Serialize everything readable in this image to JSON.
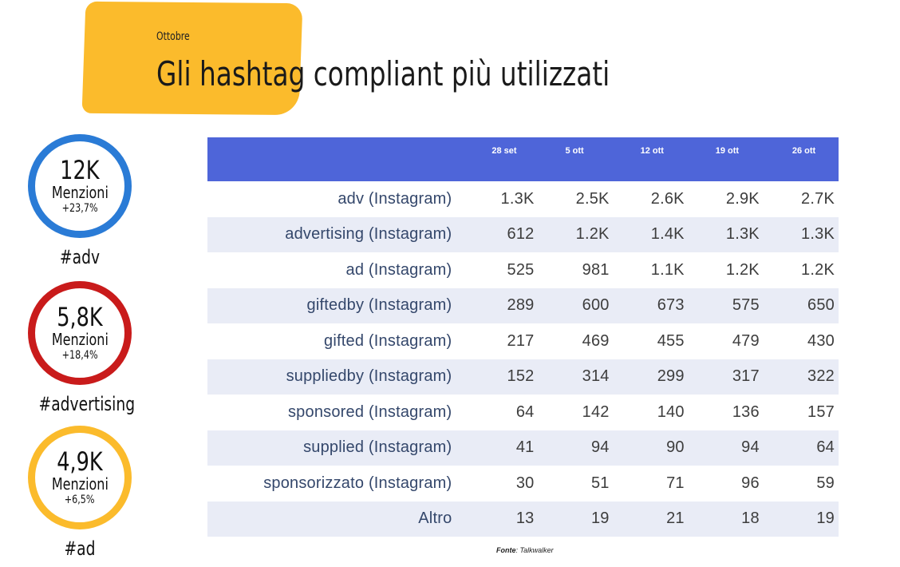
{
  "header": {
    "subtitle": "Ottobre",
    "title": "Gli hashtag compliant più utilizzati"
  },
  "stats": [
    {
      "value": "12K",
      "label": "Menzioni",
      "delta": "+23,7%",
      "tag": "#adv",
      "color": "#2a7bd6"
    },
    {
      "value": "5,8K",
      "label": "Menzioni",
      "delta": "+18,4%",
      "tag": "#advertising",
      "color": "#c91b1b"
    },
    {
      "value": "4,9K",
      "label": "Menzioni",
      "delta": "+6,5%",
      "tag": "#ad",
      "color": "#fbbb2c"
    }
  ],
  "chart_data": {
    "type": "table",
    "columns": [
      "28 set",
      "5 ott",
      "12 ott",
      "19 ott",
      "26 ott"
    ],
    "rows": [
      {
        "label": "adv (Instagram)",
        "values": [
          "1.3K",
          "2.5K",
          "2.6K",
          "2.9K",
          "2.7K"
        ]
      },
      {
        "label": "advertising (Instagram)",
        "values": [
          "612",
          "1.2K",
          "1.4K",
          "1.3K",
          "1.3K"
        ]
      },
      {
        "label": "ad (Instagram)",
        "values": [
          "525",
          "981",
          "1.1K",
          "1.2K",
          "1.2K"
        ]
      },
      {
        "label": "giftedby (Instagram)",
        "values": [
          "289",
          "600",
          "673",
          "575",
          "650"
        ]
      },
      {
        "label": "gifted (Instagram)",
        "values": [
          "217",
          "469",
          "455",
          "479",
          "430"
        ]
      },
      {
        "label": "suppliedby (Instagram)",
        "values": [
          "152",
          "314",
          "299",
          "317",
          "322"
        ]
      },
      {
        "label": "sponsored (Instagram)",
        "values": [
          "64",
          "142",
          "140",
          "136",
          "157"
        ]
      },
      {
        "label": "supplied (Instagram)",
        "values": [
          "41",
          "94",
          "90",
          "94",
          "64"
        ]
      },
      {
        "label": "sponsorizzato (Instagram)",
        "values": [
          "30",
          "51",
          "71",
          "96",
          "59"
        ]
      },
      {
        "label": "Altro",
        "values": [
          "13",
          "19",
          "21",
          "18",
          "19"
        ]
      }
    ]
  },
  "source": {
    "label": "Fonte",
    "value": ": Talkwalker"
  },
  "colors": {
    "header_bg": "#4e65d9",
    "stripe": "#e9ecf6",
    "banner": "#fbbb2c"
  }
}
